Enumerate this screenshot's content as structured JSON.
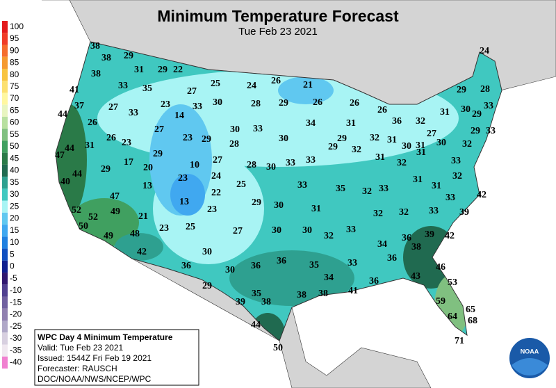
{
  "header": {
    "title": "Minimum Temperature Forecast",
    "subtitle": "Tue Feb 23 2021"
  },
  "legend": {
    "labels": [
      "100",
      "95",
      "90",
      "85",
      "80",
      "75",
      "70",
      "65",
      "60",
      "55",
      "50",
      "45",
      "40",
      "35",
      "30",
      "25",
      "20",
      "15",
      "10",
      "5",
      "0",
      "-5",
      "-10",
      "-15",
      "-20",
      "-25",
      "-30",
      "-35",
      "-40"
    ],
    "colors": [
      "#e31a1c",
      "#f03c28",
      "#f56d2e",
      "#f59a30",
      "#f8c440",
      "#fce070",
      "#fff7a0",
      "#e8f5c0",
      "#b8e0a0",
      "#80c080",
      "#40a060",
      "#2a7a48",
      "#206a50",
      "#2ea090",
      "#40c8c0",
      "#a8f4f4",
      "#60c8f0",
      "#40a8f0",
      "#2080e0",
      "#1050c0",
      "#102090",
      "#301870",
      "#504090",
      "#7060a0",
      "#9080b0",
      "#b0a8c8",
      "#d8d0e0",
      "#f0e8f0",
      "#f080d0"
    ]
  },
  "stations": [
    38,
    38,
    29,
    24,
    31,
    29,
    22,
    38,
    41,
    33,
    35,
    27,
    25,
    24,
    26,
    21,
    29,
    28,
    37,
    27,
    23,
    33,
    30,
    28,
    29,
    26,
    26,
    26,
    31,
    30,
    29,
    33,
    44,
    33,
    14,
    26,
    27,
    30,
    33,
    34,
    31,
    36,
    32,
    27,
    29,
    33,
    26,
    23,
    23,
    29,
    28,
    30,
    29,
    32,
    31,
    30,
    29,
    32,
    31,
    30,
    32,
    47,
    44,
    31,
    29,
    17,
    20,
    10,
    27,
    28,
    30,
    33,
    33,
    31,
    32,
    31,
    33,
    44,
    29,
    23,
    24,
    25,
    33,
    35,
    32,
    33,
    31,
    32,
    40,
    13,
    22,
    31,
    42,
    47,
    13,
    29,
    30,
    31,
    32,
    32,
    33,
    33,
    52,
    49,
    23,
    21,
    39,
    50,
    52,
    23,
    25,
    27,
    30,
    30,
    32,
    33,
    39,
    42,
    49,
    48,
    34,
    36,
    38,
    42,
    30,
    36,
    46,
    36,
    30,
    36,
    36,
    35,
    33,
    34,
    43,
    53,
    29,
    41,
    36,
    35,
    38,
    38,
    39,
    38,
    59,
    65,
    64,
    68,
    44,
    71,
    50
  ],
  "info": {
    "heading": "WPC Day 4 Minimum Temperature",
    "lines": [
      "Valid: Tue Feb 23 2021",
      "Issued: 1544Z Fri Feb 19 2021",
      "Forecaster: RAUSCH",
      "DOC/NOAA/NWS/NCEP/WPC"
    ]
  },
  "logo": "NOAA"
}
